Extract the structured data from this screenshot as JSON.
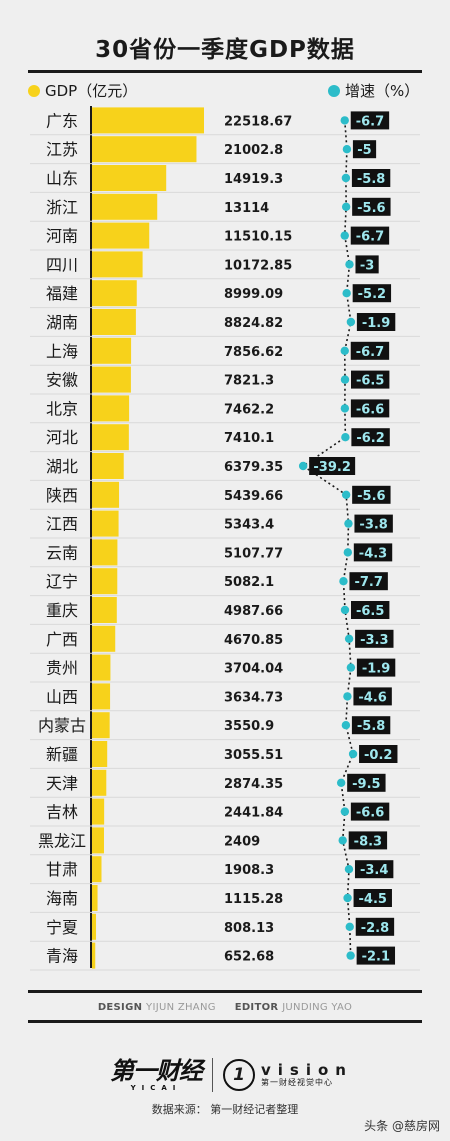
{
  "chart_data": {
    "type": "bar",
    "title": "30省份一季度GDP数据",
    "categories": [
      "广东",
      "江苏",
      "山东",
      "浙江",
      "河南",
      "四川",
      "福建",
      "湖南",
      "上海",
      "安徽",
      "北京",
      "河北",
      "湖北",
      "陕西",
      "江西",
      "云南",
      "辽宁",
      "重庆",
      "广西",
      "贵州",
      "山西",
      "内蒙古",
      "新疆",
      "天津",
      "吉林",
      "黑龙江",
      "甘肃",
      "海南",
      "宁夏",
      "青海"
    ],
    "series": [
      {
        "name": "GDP（亿元）",
        "color": "#f7d21b",
        "values": [
          22518.67,
          21002.8,
          14919.3,
          13114,
          11510.15,
          10172.85,
          8999.09,
          8824.82,
          7856.62,
          7821.3,
          7462.2,
          7410.1,
          6379.35,
          5439.66,
          5343.4,
          5107.77,
          5082.1,
          4987.66,
          4670.85,
          3704.04,
          3634.73,
          3550.9,
          3055.51,
          2874.35,
          2441.84,
          2409,
          1908.3,
          1115.28,
          808.13,
          652.68
        ],
        "labels": [
          "22518.67",
          "21002.8",
          "14919.3",
          "13114",
          "11510.15",
          "10172.85",
          "8999.09",
          "8824.82",
          "7856.62",
          "7821.3",
          "7462.2",
          "7410.1",
          "6379.35",
          "5439.66",
          "5343.4",
          "5107.77",
          "5082.1",
          "4987.66",
          "4670.85",
          "3704.04",
          "3634.73",
          "3550.9",
          "3055.51",
          "2874.35",
          "2441.84",
          "2409",
          "1908.3",
          "1115.28",
          "808.13",
          "652.68"
        ]
      },
      {
        "name": "增速（%）",
        "color": "#2cbcc9",
        "values": [
          -6.7,
          -5,
          -5.8,
          -5.6,
          -6.7,
          -3,
          -5.2,
          -1.9,
          -6.7,
          -6.5,
          -6.6,
          -6.2,
          -39.2,
          -5.6,
          -3.8,
          -4.3,
          -7.7,
          -6.5,
          -3.3,
          -1.9,
          -4.6,
          -5.8,
          -0.2,
          -9.5,
          -6.6,
          -8.3,
          -3.4,
          -4.5,
          -2.8,
          -2.1
        ],
        "labels": [
          "-6.7",
          "-5",
          "-5.8",
          "-5.6",
          "-6.7",
          "-3",
          "-5.2",
          "-1.9",
          "-6.7",
          "-6.5",
          "-6.6",
          "-6.2",
          "-39.2",
          "-5.6",
          "-3.8",
          "-4.3",
          "-7.7",
          "-6.5",
          "-3.3",
          "-1.9",
          "-4.6",
          "-5.8",
          "-0.2",
          "-9.5",
          "-6.6",
          "-8.3",
          "-3.4",
          "-4.5",
          "-2.8",
          "-2.1"
        ]
      }
    ],
    "legend": "top",
    "grid": true
  },
  "legend": {
    "gdp_label": "GDP（亿元）",
    "growth_label": "增速（%）"
  },
  "credits": {
    "design_label": "DESIGN",
    "design_name": "YIJUN ZHANG",
    "editor_label": "EDITOR",
    "editor_name": "JUNDING YAO"
  },
  "logos": {
    "main": "第一财经",
    "main_sub": "YICAI",
    "vision_mark": "1",
    "vision_big": "vision",
    "vision_small": "第一财经视觉中心"
  },
  "source": "数据来源： 第一财经记者整理",
  "watermark": "头条 @慈房网",
  "colors": {
    "accent_yellow": "#f7d21b",
    "accent_teal": "#2cbcc9",
    "ink": "#1a1a1a"
  }
}
